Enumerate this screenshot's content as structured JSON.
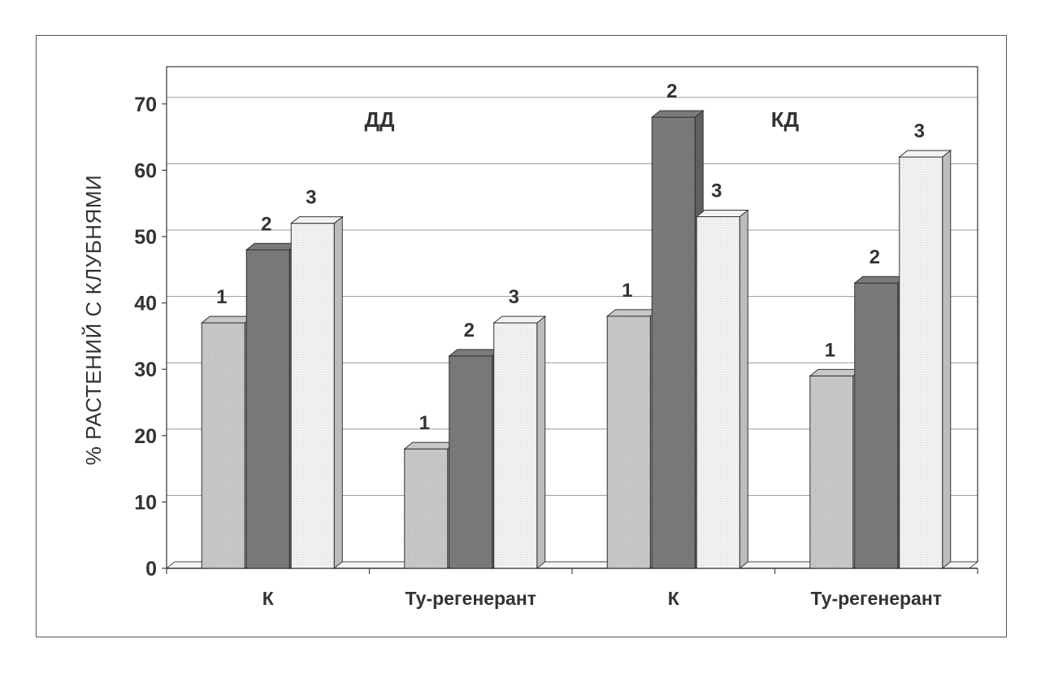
{
  "chart_data": {
    "type": "bar",
    "ylabel": "% РАСТЕНИЙ С КЛУБНЯМИ",
    "ylim": [
      0,
      70
    ],
    "yticks": [
      0,
      10,
      20,
      30,
      40,
      50,
      60,
      70
    ],
    "grid": true,
    "groups": [
      {
        "label": "ДД",
        "categories": [
          "К",
          "Ту-регенерант"
        ]
      },
      {
        "label": "КД",
        "categories": [
          "К",
          "Ту-регенерант"
        ]
      }
    ],
    "categories": [
      "К",
      "Ту-регенерант",
      "К",
      "Ту-регенерант"
    ],
    "series": [
      {
        "label": "1",
        "values": [
          37,
          18,
          38,
          29
        ],
        "color": "#c8c8c8"
      },
      {
        "label": "2",
        "values": [
          48,
          32,
          68,
          43
        ],
        "color": "#7a7a7a"
      },
      {
        "label": "3",
        "values": [
          52,
          37,
          53,
          62
        ],
        "color": "#f2f2f2"
      }
    ]
  }
}
